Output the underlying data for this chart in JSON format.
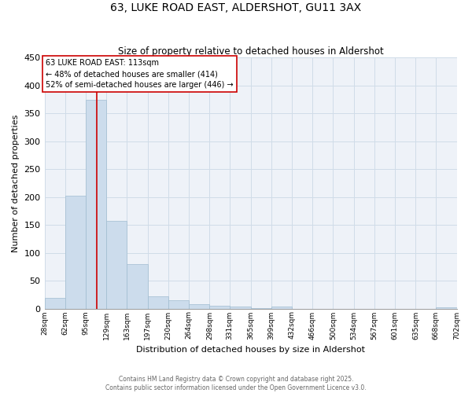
{
  "title": "63, LUKE ROAD EAST, ALDERSHOT, GU11 3AX",
  "subtitle": "Size of property relative to detached houses in Aldershot",
  "xlabel": "Distribution of detached houses by size in Aldershot",
  "ylabel": "Number of detached properties",
  "bar_color": "#ccdcec",
  "bar_edge_color": "#a0bcd0",
  "grid_color": "#d0dce8",
  "background_color": "#eef2f8",
  "vline_x": 113,
  "vline_color": "#cc0000",
  "bin_edges": [
    28,
    62,
    95,
    129,
    163,
    197,
    230,
    264,
    298,
    331,
    365,
    399,
    432,
    466,
    500,
    534,
    567,
    601,
    635,
    668,
    702
  ],
  "bar_heights": [
    19,
    202,
    374,
    157,
    80,
    22,
    15,
    8,
    5,
    3,
    1,
    3,
    0,
    0,
    0,
    0,
    0,
    0,
    0,
    2
  ],
  "tick_labels": [
    "28sqm",
    "62sqm",
    "95sqm",
    "129sqm",
    "163sqm",
    "197sqm",
    "230sqm",
    "264sqm",
    "298sqm",
    "331sqm",
    "365sqm",
    "399sqm",
    "432sqm",
    "466sqm",
    "500sqm",
    "534sqm",
    "567sqm",
    "601sqm",
    "635sqm",
    "668sqm",
    "702sqm"
  ],
  "annotation_text": "63 LUKE ROAD EAST: 113sqm\n← 48% of detached houses are smaller (414)\n52% of semi-detached houses are larger (446) →",
  "annotation_box_color": "#ffffff",
  "annotation_box_edge": "#cc0000",
  "footer_line1": "Contains HM Land Registry data © Crown copyright and database right 2025.",
  "footer_line2": "Contains public sector information licensed under the Open Government Licence v3.0.",
  "ylim": [
    0,
    450
  ],
  "yticks": [
    0,
    50,
    100,
    150,
    200,
    250,
    300,
    350,
    400,
    450
  ]
}
